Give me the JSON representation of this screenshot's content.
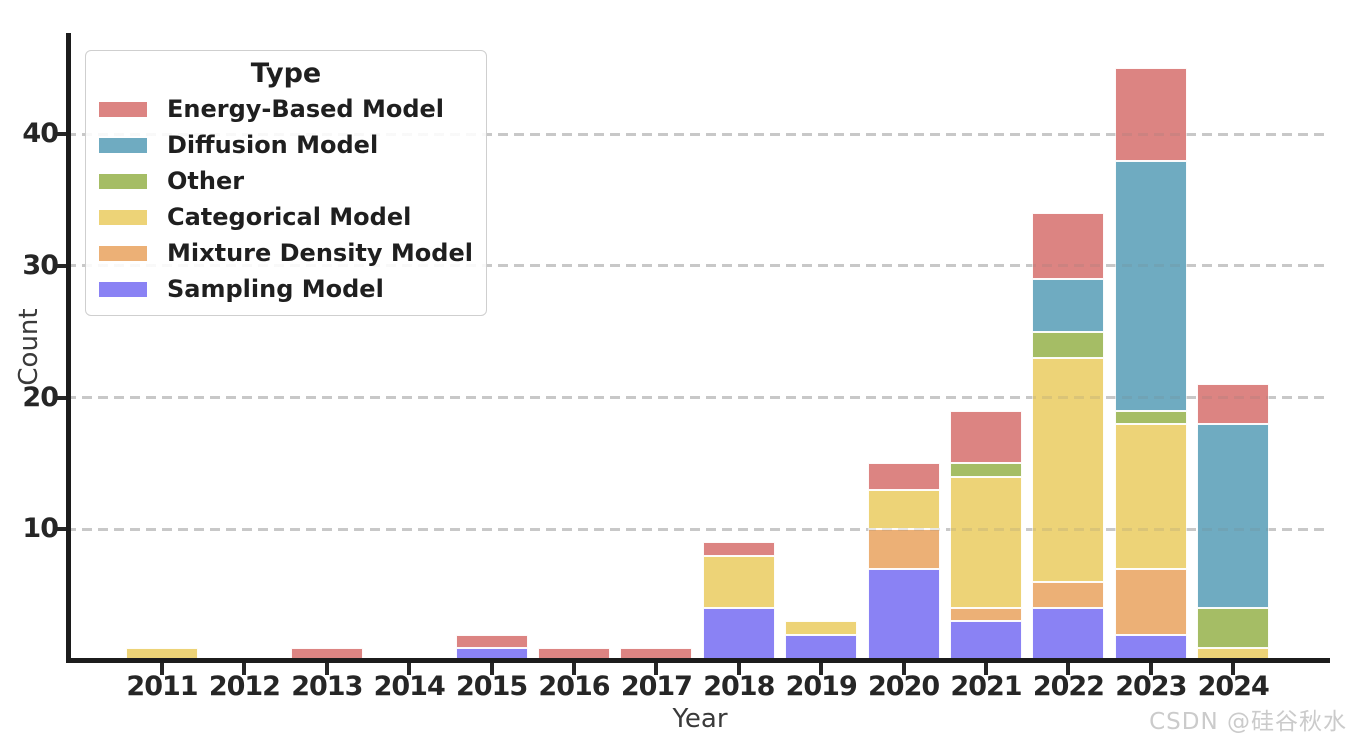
{
  "watermark": "CSDN @硅谷秋水",
  "chart_data": {
    "type": "bar",
    "stacked": true,
    "title": "",
    "xlabel": "Year",
    "ylabel": "Count",
    "categories": [
      "2011",
      "2012",
      "2013",
      "2014",
      "2015",
      "2016",
      "2017",
      "2018",
      "2019",
      "2020",
      "2021",
      "2022",
      "2023",
      "2024"
    ],
    "yticks": [
      10,
      20,
      30,
      40
    ],
    "ylim": [
      0,
      47.5
    ],
    "grid": "horizontal dashed at yticks",
    "legend": {
      "title": "Type",
      "position": "upper left"
    },
    "series": [
      {
        "name": "Energy-Based Model",
        "color": "#dc8482",
        "values": [
          0,
          0,
          1,
          0,
          1,
          1,
          1,
          1,
          0,
          2,
          4,
          5,
          7,
          3
        ]
      },
      {
        "name": "Diffusion Model",
        "color": "#6fabc1",
        "values": [
          0,
          0,
          0,
          0,
          0,
          0,
          0,
          0,
          0,
          0,
          0,
          4,
          19,
          14
        ]
      },
      {
        "name": "Other",
        "color": "#a5bd65",
        "values": [
          0,
          0,
          0,
          0,
          0,
          0,
          0,
          0,
          0,
          0,
          1,
          2,
          1,
          3
        ]
      },
      {
        "name": "Categorical Model",
        "color": "#edd377",
        "values": [
          1,
          0,
          0,
          0,
          0,
          0,
          0,
          4,
          1,
          3,
          10,
          17,
          11,
          1
        ]
      },
      {
        "name": "Mixture Density Model",
        "color": "#ecb076",
        "values": [
          0,
          0,
          0,
          0,
          0,
          0,
          0,
          0,
          0,
          3,
          1,
          2,
          5,
          0
        ]
      },
      {
        "name": "Sampling Model",
        "color": "#8a82f4",
        "values": [
          0,
          0,
          0,
          0,
          1,
          0,
          0,
          4,
          2,
          7,
          3,
          4,
          2,
          0
        ]
      }
    ],
    "stack_order_bottom_to_top": [
      "Sampling Model",
      "Mixture Density Model",
      "Categorical Model",
      "Other",
      "Diffusion Model",
      "Energy-Based Model"
    ],
    "totals_by_year": [
      1,
      0,
      1,
      0,
      2,
      1,
      1,
      9,
      3,
      15,
      19,
      34,
      45,
      21
    ]
  }
}
